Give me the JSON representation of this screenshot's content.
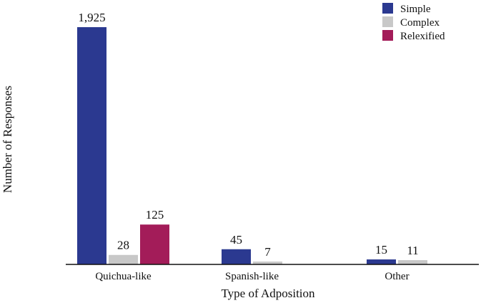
{
  "chart_data": {
    "type": "bar",
    "categories": [
      "Quichua-like",
      "Spanish-like",
      "Other"
    ],
    "series": [
      {
        "name": "Simple",
        "values": [
          1925,
          45,
          15
        ],
        "labels": [
          "1,925",
          "45",
          "15"
        ],
        "color": "#2b3990"
      },
      {
        "name": "Complex",
        "values": [
          28,
          7,
          11
        ],
        "labels": [
          "28",
          "7",
          "11"
        ],
        "color": "#c8c8c8"
      },
      {
        "name": "Relexified",
        "values": [
          125,
          null,
          null
        ],
        "labels": [
          "125",
          "",
          ""
        ],
        "color": "#a31c59"
      }
    ],
    "xlabel": "Type of Adposition",
    "ylabel": "Number of Responses",
    "y_scale": "nonlinear (bar heights not proportional to values)",
    "visual_heights": [
      [
        1.0,
        0.04,
        0.168
      ],
      [
        0.064,
        0.012,
        null
      ],
      [
        0.021,
        0.018,
        null
      ]
    ],
    "grid": false,
    "legend_position": "top-right"
  }
}
